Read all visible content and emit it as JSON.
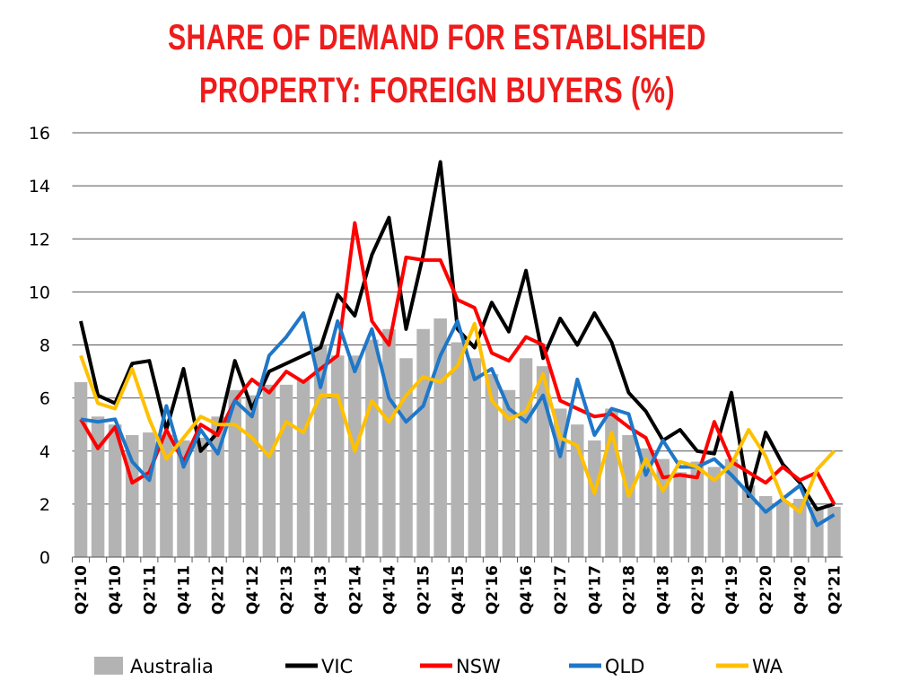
{
  "chart_data": {
    "type": "combo",
    "title": [
      "SHARE OF DEMAND FOR ESTABLISHED",
      "PROPERTY: FOREIGN BUYERS (%)"
    ],
    "categories": [
      "Q2'10",
      null,
      "Q4'10",
      null,
      "Q2'11",
      null,
      "Q4'11",
      null,
      "Q2'12",
      null,
      "Q4'12",
      null,
      "Q2'13",
      null,
      "Q4'13",
      null,
      "Q2'14",
      null,
      "Q4'14",
      null,
      "Q2'15",
      null,
      "Q4'15",
      null,
      "Q2'16",
      null,
      "Q4'16",
      null,
      "Q2'17",
      null,
      "Q4'17",
      null,
      "Q2'18",
      null,
      "Q4'18",
      null,
      "Q2'19",
      null,
      "Q4'19",
      null,
      "Q2'20",
      null,
      "Q4'20",
      null,
      "Q2'21"
    ],
    "series": [
      {
        "name": "Australia",
        "type": "bar",
        "color": "#b3b3b3",
        "values": [
          6.6,
          5.3,
          5.0,
          4.6,
          4.7,
          4.6,
          4.4,
          4.5,
          5.3,
          6.3,
          6.1,
          6.5,
          6.5,
          6.7,
          8.0,
          7.6,
          7.6,
          8.2,
          8.6,
          7.5,
          8.6,
          9.0,
          8.1,
          7.5,
          6.9,
          6.3,
          7.5,
          7.2,
          5.6,
          5.0,
          4.4,
          5.6,
          4.6,
          4.1,
          3.7,
          3.2,
          3.6,
          3.4,
          3.7,
          2.7,
          2.3,
          2.1,
          2.2,
          1.9,
          1.9
        ]
      },
      {
        "name": "VIC",
        "type": "line",
        "color": "#000000",
        "values": [
          8.9,
          6.1,
          5.8,
          7.3,
          7.4,
          4.8,
          7.1,
          4.0,
          4.7,
          7.4,
          5.6,
          7.0,
          7.3,
          7.6,
          7.9,
          9.9,
          9.1,
          11.4,
          12.8,
          8.6,
          11.4,
          14.9,
          8.6,
          7.9,
          9.6,
          8.5,
          10.8,
          7.5,
          9.0,
          8.0,
          9.2,
          8.1,
          6.2,
          5.5,
          4.4,
          4.8,
          4.0,
          3.9,
          6.2,
          2.3,
          4.7,
          3.5,
          2.8,
          1.8,
          2.0
        ]
      },
      {
        "name": "NSW",
        "type": "line",
        "color": "#ff0000",
        "values": [
          5.2,
          4.1,
          4.9,
          2.8,
          3.2,
          4.8,
          3.6,
          5.0,
          4.6,
          5.9,
          6.7,
          6.2,
          7.0,
          6.6,
          7.1,
          7.6,
          12.6,
          8.9,
          8.0,
          11.3,
          11.2,
          11.2,
          9.7,
          9.4,
          7.7,
          7.4,
          8.3,
          8.0,
          5.9,
          5.6,
          5.3,
          5.4,
          4.9,
          4.5,
          3.0,
          3.1,
          3.0,
          5.1,
          3.6,
          3.2,
          2.8,
          3.4,
          2.9,
          3.2,
          2.0
        ]
      },
      {
        "name": "QLD",
        "type": "line",
        "color": "#1f77c8",
        "values": [
          5.2,
          5.1,
          5.2,
          3.6,
          2.9,
          5.7,
          3.4,
          4.8,
          3.9,
          5.9,
          5.3,
          7.6,
          8.3,
          9.2,
          6.4,
          8.9,
          7.0,
          8.6,
          6.0,
          5.1,
          5.7,
          7.6,
          8.9,
          6.7,
          7.1,
          5.6,
          5.1,
          6.1,
          3.8,
          6.7,
          4.6,
          5.6,
          5.4,
          3.1,
          4.4,
          3.4,
          3.4,
          3.7,
          3.1,
          2.4,
          1.7,
          2.2,
          2.7,
          1.2,
          1.6
        ]
      },
      {
        "name": "WA",
        "type": "line",
        "color": "#ffc000",
        "values": [
          7.6,
          5.8,
          5.6,
          7.1,
          5.2,
          3.7,
          4.5,
          5.3,
          5.0,
          5.0,
          4.5,
          3.8,
          5.1,
          4.7,
          6.1,
          6.1,
          4.0,
          5.9,
          5.1,
          6.1,
          6.8,
          6.6,
          7.2,
          8.8,
          5.9,
          5.2,
          5.5,
          6.9,
          4.5,
          4.2,
          2.4,
          4.7,
          2.3,
          3.7,
          2.5,
          3.6,
          3.4,
          2.9,
          3.5,
          4.8,
          3.8,
          2.2,
          1.7,
          3.3,
          4.0
        ]
      }
    ],
    "ylim": [
      0,
      16
    ],
    "yticks": [
      0,
      2,
      4,
      6,
      8,
      10,
      12,
      14,
      16
    ],
    "grid": true,
    "legend": "bottom"
  }
}
